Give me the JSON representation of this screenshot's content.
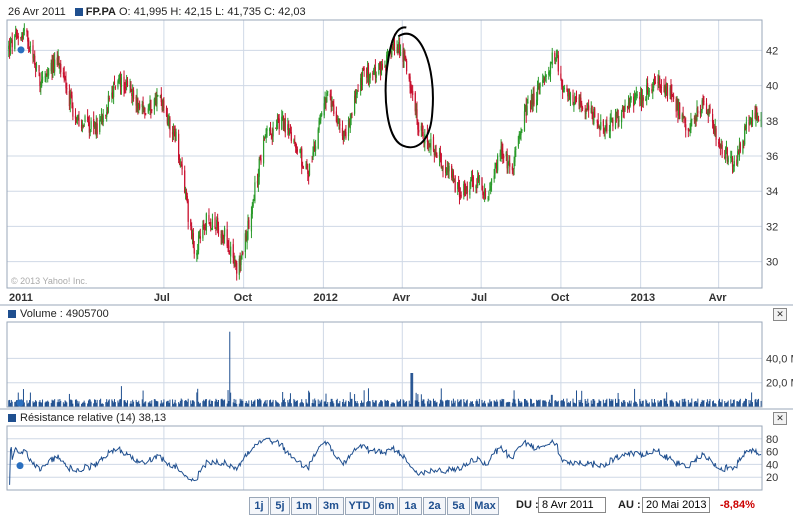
{
  "header": {
    "date": "26 Avr 2011",
    "ticker": "FP.PA",
    "open_label": "O:",
    "open": "41,995",
    "high_label": "H:",
    "high": "42,15",
    "low_label": "L:",
    "low": "41,735",
    "close_label": "C:",
    "close": "42,03"
  },
  "watermark": "© 2013 Yahoo! Inc.",
  "volume_panel": {
    "label": "Volume : 4905700"
  },
  "rsi_panel": {
    "label": "Résistance relative (14) 38,13"
  },
  "range_buttons": [
    "1j",
    "5j",
    "1m",
    "3m",
    "YTD",
    "6m",
    "1a",
    "2a",
    "5a",
    "Max"
  ],
  "date_range": {
    "from_label": "DU :",
    "from": "8 Avr 2011",
    "to_label": "AU :",
    "to": "20 Mai 2013",
    "change": "-8,84%"
  },
  "colors": {
    "up": "#2a9a2a",
    "down": "#c8102e",
    "volume": "#1f4f8f",
    "rsi": "#1f4f8f",
    "grid": "#cfd8e6",
    "annotation": "#000000"
  },
  "chart_data": [
    {
      "type": "candlestick",
      "name": "price",
      "xlabel": "",
      "ylabel": "",
      "ylim": [
        28.5,
        43.5
      ],
      "y_ticks": [
        30,
        32,
        34,
        36,
        38,
        40,
        42
      ],
      "x_ticks": [
        "2011",
        "Jul",
        "Oct",
        "2012",
        "Avr",
        "Jul",
        "Oct",
        "2013",
        "Avr"
      ],
      "x_tick_months": [
        0,
        6,
        9,
        12,
        15,
        18,
        21,
        24,
        27
      ],
      "start": "2011-01",
      "end": "2013-05",
      "grid": true,
      "anchors": [
        [
          "2011-01",
          42
        ],
        [
          "2011-01-20",
          43.2
        ],
        [
          "2011-02-10",
          40
        ],
        [
          "2011-03-01",
          41.5
        ],
        [
          "2011-03-20",
          38.2
        ],
        [
          "2011-04-15",
          37.5
        ],
        [
          "2011-05-10",
          40.5
        ],
        [
          "2011-06-10",
          38.5
        ],
        [
          "2011-06-25",
          39.5
        ],
        [
          "2011-07-15",
          37
        ],
        [
          "2011-08-05",
          30.5
        ],
        [
          "2011-08-20",
          32.5
        ],
        [
          "2011-09-10",
          31.5
        ],
        [
          "2011-09-25",
          29.5
        ],
        [
          "2011-10-10",
          33
        ],
        [
          "2011-10-25",
          37
        ],
        [
          "2011-11-15",
          38
        ],
        [
          "2011-12-01",
          36.5
        ],
        [
          "2011-12-15",
          35
        ],
        [
          "2012-01-05",
          39.5
        ],
        [
          "2012-01-25",
          37
        ],
        [
          "2012-02-15",
          40.5
        ],
        [
          "2012-03-10",
          41
        ],
        [
          "2012-03-25",
          42.5
        ],
        [
          "2012-04-05",
          41.5
        ],
        [
          "2012-04-12",
          39.5
        ],
        [
          "2012-04-20",
          37.5
        ],
        [
          "2012-05-05",
          36.5
        ],
        [
          "2012-05-20",
          35.5
        ],
        [
          "2012-06-05",
          34
        ],
        [
          "2012-06-25",
          34.5
        ],
        [
          "2012-07-10",
          33.8
        ],
        [
          "2012-07-25",
          36.5
        ],
        [
          "2012-08-05",
          35
        ],
        [
          "2012-08-20",
          38.5
        ],
        [
          "2012-09-10",
          40
        ],
        [
          "2012-09-25",
          42
        ],
        [
          "2012-10-05",
          39.5
        ],
        [
          "2012-10-20",
          39
        ],
        [
          "2012-11-05",
          38.5
        ],
        [
          "2012-11-20",
          37.5
        ],
        [
          "2012-12-10",
          38.5
        ],
        [
          "2013-01-05",
          39.5
        ],
        [
          "2013-01-20",
          40.5
        ],
        [
          "2013-02-05",
          39.5
        ],
        [
          "2013-02-25",
          37.5
        ],
        [
          "2013-03-15",
          39
        ],
        [
          "2013-04-05",
          36.5
        ],
        [
          "2013-04-20",
          35.5
        ],
        [
          "2013-05-05",
          38
        ],
        [
          "2013-05-20",
          38.5
        ]
      ]
    },
    {
      "type": "bar",
      "name": "volume",
      "ylim": [
        0,
        70
      ],
      "y_ticks": [
        20,
        40
      ],
      "y_tick_labels": [
        "20,0 M",
        "40,0 M"
      ],
      "baseline": 5,
      "spikes": [
        [
          "2011-08-08",
          15
        ],
        [
          "2011-09-16",
          62
        ],
        [
          "2012-04-12",
          28
        ],
        [
          "2011-12-16",
          12
        ],
        [
          "2012-09-21",
          10
        ]
      ]
    },
    {
      "type": "line",
      "name": "rsi",
      "ylim": [
        0,
        100
      ],
      "y_ticks": [
        20,
        40,
        60,
        80
      ],
      "last": 38.13
    }
  ]
}
